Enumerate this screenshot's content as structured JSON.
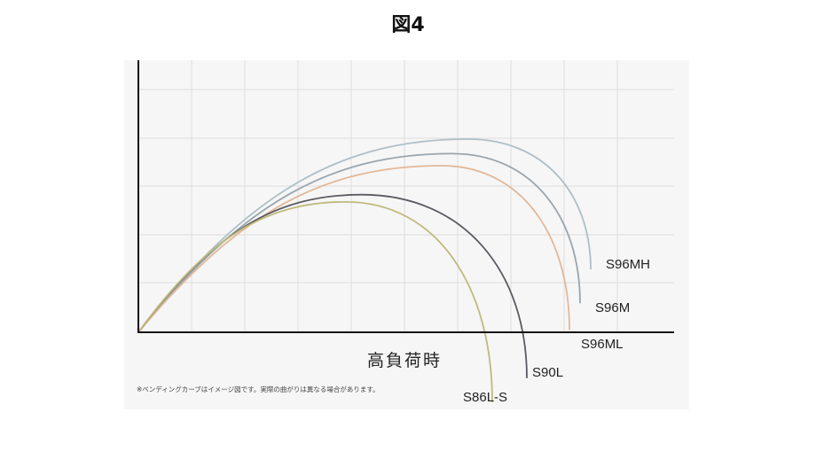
{
  "page": {
    "figure_title": "図4"
  },
  "chart_data": {
    "type": "line",
    "title": "図4",
    "xlabel": "高負荷時",
    "ylabel": "",
    "grid": true,
    "legend": "labels at curve ends (bottom-right)",
    "note": "※ベンディングカーブはイメージ図です。実際の曲がりは異なる場合があります。",
    "series": [
      {
        "name": "S96MH",
        "color": "#aebfc6",
        "apex_height": 4.0,
        "apex_reach": 6.2,
        "tip_reach": 8.5,
        "tip_height": 1.3
      },
      {
        "name": "S96M",
        "color": "#9aa5ad",
        "apex_height": 3.7,
        "apex_reach": 5.9,
        "tip_reach": 8.3,
        "tip_height": 0.6
      },
      {
        "name": "S96ML",
        "color": "#e3b898",
        "apex_height": 3.45,
        "apex_reach": 5.7,
        "tip_reach": 8.1,
        "tip_height": 0.05
      },
      {
        "name": "S90L",
        "color": "#5a5a62",
        "apex_height": 2.85,
        "apex_reach": 4.2,
        "tip_reach": 7.3,
        "tip_height": -0.95
      },
      {
        "name": "S86L-S",
        "color": "#bfba7d",
        "apex_height": 2.7,
        "apex_reach": 3.9,
        "tip_reach": 6.65,
        "tip_height": -1.45
      }
    ]
  }
}
